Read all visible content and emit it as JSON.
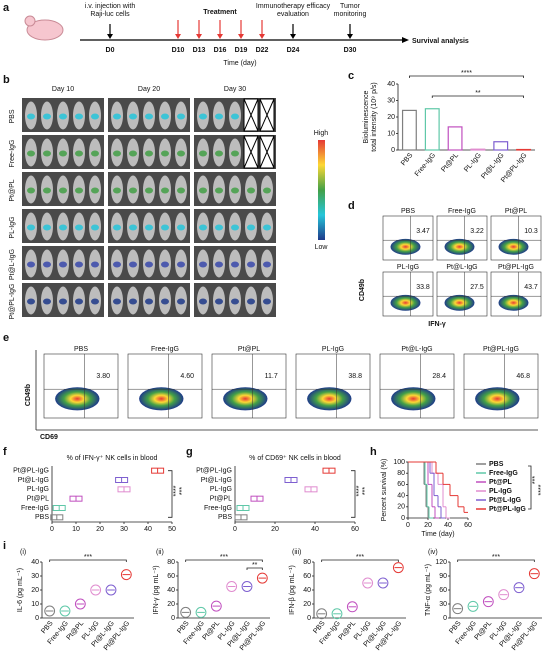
{
  "figure": {
    "timeline": {
      "label": "a",
      "injection": [
        "i.v. injection with",
        "Raji-luc cells"
      ],
      "treatment": "Treatment",
      "evaluation": [
        "Immunotherapy efficacy",
        "evaluation"
      ],
      "monitoring": [
        "Tumor",
        "monitoring"
      ],
      "days": [
        "D0",
        "D10",
        "D13",
        "D16",
        "D19",
        "D22",
        "D24",
        "D30"
      ],
      "end": "Survival analysis",
      "axis": "Time (day)"
    },
    "imaging": {
      "label": "b",
      "days": [
        "Day 10",
        "Day 20",
        "Day 30"
      ],
      "groups": [
        "PBS",
        "Free-IgG",
        "Pt@PL",
        "PL-IgG",
        "Pt@L-IgG",
        "Pt@PL-IgG"
      ],
      "scale_high": "High",
      "scale_low": "Low"
    },
    "flow_d": {
      "label": "d",
      "groups": [
        "PBS",
        "Free-IgG",
        "Pt@PL",
        "PL-IgG",
        "Pt@L-IgG",
        "Pt@PL-IgG"
      ],
      "percents": [
        "3.47",
        "3.22",
        "10.3",
        "33.8",
        "27.5",
        "43.7"
      ],
      "y_axis": "CD49b",
      "x_axis": "IFN-γ"
    },
    "flow_e": {
      "label": "e",
      "groups": [
        "PBS",
        "Free-IgG",
        "Pt@PL",
        "PL-IgG",
        "Pt@L-IgG",
        "Pt@PL-IgG"
      ],
      "percents": [
        "3.80",
        "4.60",
        "11.7",
        "38.8",
        "28.4",
        "46.8"
      ],
      "y_axis": "CD49b",
      "x_axis": "CD69"
    },
    "panel_i": "i"
  },
  "chart_data": [
    {
      "type": "bar",
      "label": "c",
      "ylabel": [
        "Bioluminescence",
        "total intensity (10⁹ p/s)"
      ],
      "categories": [
        "PBS",
        "Free-IgG",
        "Pt@PL",
        "PL-IgG",
        "Pt@L-IgG",
        "Pt@PL-IgG"
      ],
      "values": [
        24,
        25,
        14,
        0.5,
        5,
        0.3
      ],
      "colors": [
        "#7f7f7f",
        "#5fc8a8",
        "#c04fbf",
        "#e08ccf",
        "#7e5fd0",
        "#e53935"
      ],
      "ylim": [
        0,
        40
      ],
      "yticks": [
        0,
        10,
        20,
        30,
        40
      ],
      "annotations": [
        "****",
        "**"
      ]
    },
    {
      "type": "hbox",
      "label": "f",
      "title": "% of IFN-γ⁺ NK cells in blood",
      "categories": [
        "Pt@PL-IgG",
        "Pt@L-IgG",
        "PL-IgG",
        "Pt@PL",
        "Free-IgG",
        "PBS"
      ],
      "values": [
        44,
        29,
        30,
        10,
        3,
        2
      ],
      "colors": [
        "#e53935",
        "#7e5fd0",
        "#e08ccf",
        "#c04fbf",
        "#5fc8a8",
        "#7f7f7f"
      ],
      "xlim": [
        0,
        50
      ],
      "xticks": [
        0,
        10,
        20,
        30,
        40,
        50
      ],
      "annotations": [
        "****",
        "***"
      ]
    },
    {
      "type": "hbox",
      "label": "g",
      "title": "% of CD69⁺ NK cells in blood",
      "categories": [
        "Pt@PL-IgG",
        "Pt@L-IgG",
        "PL-IgG",
        "Pt@PL",
        "Free-IgG",
        "PBS"
      ],
      "values": [
        47,
        28,
        38,
        11,
        4,
        3
      ],
      "colors": [
        "#e53935",
        "#7e5fd0",
        "#e08ccf",
        "#c04fbf",
        "#5fc8a8",
        "#7f7f7f"
      ],
      "xlim": [
        0,
        60
      ],
      "xticks": [
        0,
        20,
        40,
        60
      ],
      "annotations": [
        "****",
        "***"
      ]
    },
    {
      "type": "survival",
      "label": "h",
      "ylabel": "Percent survival (%)",
      "xlabel": "Time (day)",
      "xlim": [
        0,
        60
      ],
      "xticks": [
        0,
        20,
        40,
        60
      ],
      "ylim": [
        0,
        100
      ],
      "yticks": [
        0,
        20,
        40,
        60,
        80,
        100
      ],
      "annotations": [
        "***",
        "****"
      ],
      "series": [
        {
          "name": "PBS",
          "color": "#7f7f7f",
          "x": [
            0,
            16,
            18,
            20
          ],
          "values": [
            100,
            60,
            20,
            0
          ]
        },
        {
          "name": "Free-IgG",
          "color": "#5fc8a8",
          "x": [
            0,
            17,
            19,
            21
          ],
          "values": [
            100,
            60,
            20,
            0
          ]
        },
        {
          "name": "Pt@PL",
          "color": "#c04fbf",
          "x": [
            0,
            20,
            24,
            27
          ],
          "values": [
            100,
            60,
            20,
            0
          ]
        },
        {
          "name": "PL-IgG",
          "color": "#e08ccf",
          "x": [
            0,
            24,
            30,
            35,
            38
          ],
          "values": [
            100,
            80,
            60,
            20,
            0
          ]
        },
        {
          "name": "Pt@L-IgG",
          "color": "#7e5fd0",
          "x": [
            0,
            22,
            26,
            30,
            33
          ],
          "values": [
            100,
            80,
            40,
            20,
            0
          ]
        },
        {
          "name": "Pt@PL-IgG",
          "color": "#e53935",
          "x": [
            0,
            28,
            35,
            42,
            50,
            56
          ],
          "values": [
            100,
            80,
            60,
            40,
            20,
            10
          ]
        }
      ]
    },
    {
      "type": "violin",
      "label": "(i)",
      "ylabel": "IL-6 (pg mL⁻¹)",
      "categories": [
        "PBS",
        "Free-IgG",
        "Pt@PL",
        "PL-IgG",
        "Pt@L-IgG",
        "Pt@PL-IgG"
      ],
      "values": [
        5,
        5,
        10,
        20,
        20,
        31
      ],
      "colors": [
        "#7f7f7f",
        "#5fc8a8",
        "#c04fbf",
        "#e08ccf",
        "#7e5fd0",
        "#e53935"
      ],
      "ylim": [
        0,
        40
      ],
      "yticks": [
        0,
        10,
        20,
        30,
        40
      ],
      "annotations": [
        "***"
      ]
    },
    {
      "type": "violin",
      "label": "(ii)",
      "ylabel": "IFN-γ (pg mL⁻¹)",
      "categories": [
        "PBS",
        "Free-IgG",
        "Pt@PL",
        "PL-IgG",
        "Pt@L-IgG",
        "Pt@PL-IgG"
      ],
      "values": [
        8,
        8,
        17,
        45,
        45,
        57
      ],
      "colors": [
        "#7f7f7f",
        "#5fc8a8",
        "#c04fbf",
        "#e08ccf",
        "#7e5fd0",
        "#e53935"
      ],
      "ylim": [
        0,
        80
      ],
      "yticks": [
        0,
        20,
        40,
        60,
        80
      ],
      "annotations": [
        "***",
        "**"
      ]
    },
    {
      "type": "violin",
      "label": "(iii)",
      "ylabel": "IFN-β (pg mL⁻¹)",
      "categories": [
        "PBS",
        "Free-IgG",
        "Pt@PL",
        "PL-IgG",
        "Pt@L-IgG",
        "Pt@PL-IgG"
      ],
      "values": [
        6,
        6,
        16,
        50,
        50,
        72
      ],
      "colors": [
        "#7f7f7f",
        "#5fc8a8",
        "#c04fbf",
        "#e08ccf",
        "#7e5fd0",
        "#e53935"
      ],
      "ylim": [
        0,
        80
      ],
      "yticks": [
        0,
        20,
        40,
        60,
        80
      ],
      "annotations": [
        "***"
      ]
    },
    {
      "type": "violin",
      "label": "(iv)",
      "ylabel": "TNF-α (pg mL⁻¹)",
      "categories": [
        "PBS",
        "Free-IgG",
        "Pt@PL",
        "PL-IgG",
        "Pt@L-IgG",
        "Pt@PL-IgG"
      ],
      "values": [
        20,
        25,
        35,
        50,
        65,
        95
      ],
      "colors": [
        "#7f7f7f",
        "#5fc8a8",
        "#c04fbf",
        "#e08ccf",
        "#7e5fd0",
        "#e53935"
      ],
      "ylim": [
        0,
        120
      ],
      "yticks": [
        0,
        30,
        60,
        90,
        120
      ],
      "annotations": [
        "***"
      ]
    }
  ]
}
